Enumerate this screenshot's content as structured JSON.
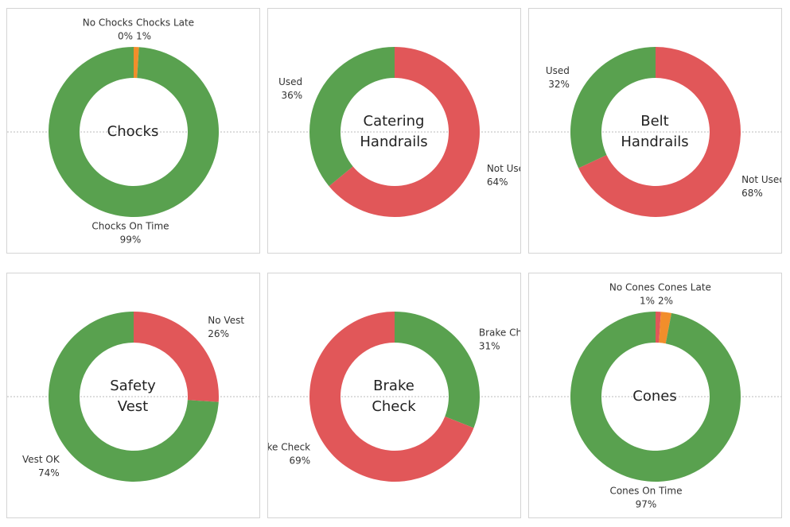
{
  "chart_data": [
    {
      "type": "pie",
      "title": "Chocks",
      "categories": [
        "No Chocks",
        "Chocks Late",
        "Chocks On Time"
      ],
      "values": [
        0,
        1,
        99
      ],
      "value_labels": [
        "0%",
        "1%",
        "99%"
      ],
      "colors": [
        "#e15759",
        "#f28e2b",
        "#59a14f"
      ]
    },
    {
      "type": "pie",
      "title": "Catering Handrails",
      "categories": [
        "Not Used",
        "Used"
      ],
      "values": [
        64,
        36
      ],
      "value_labels": [
        "64%",
        "36%"
      ],
      "colors": [
        "#e15759",
        "#59a14f"
      ]
    },
    {
      "type": "pie",
      "title": "Belt Handrails",
      "categories": [
        "Not Used",
        "Used"
      ],
      "values": [
        68,
        32
      ],
      "value_labels": [
        "68%",
        "32%"
      ],
      "colors": [
        "#e15759",
        "#59a14f"
      ]
    },
    {
      "type": "pie",
      "title": "Safety Vest",
      "categories": [
        "No Vest",
        "Vest OK"
      ],
      "values": [
        26,
        74
      ],
      "value_labels": [
        "26%",
        "74%"
      ],
      "colors": [
        "#e15759",
        "#59a14f"
      ]
    },
    {
      "type": "pie",
      "title": "Brake Check",
      "categories": [
        "Brake Check OK",
        "No Brake Check"
      ],
      "values": [
        31,
        69
      ],
      "value_labels": [
        "31%",
        "69%"
      ],
      "colors": [
        "#59a14f",
        "#e15759"
      ]
    },
    {
      "type": "pie",
      "title": "Cones",
      "categories": [
        "No Cones",
        "Cones Late",
        "Cones On Time"
      ],
      "values": [
        1,
        2,
        97
      ],
      "value_labels": [
        "1%",
        "2%",
        "97%"
      ],
      "colors": [
        "#e15759",
        "#f28e2b",
        "#59a14f"
      ]
    }
  ]
}
